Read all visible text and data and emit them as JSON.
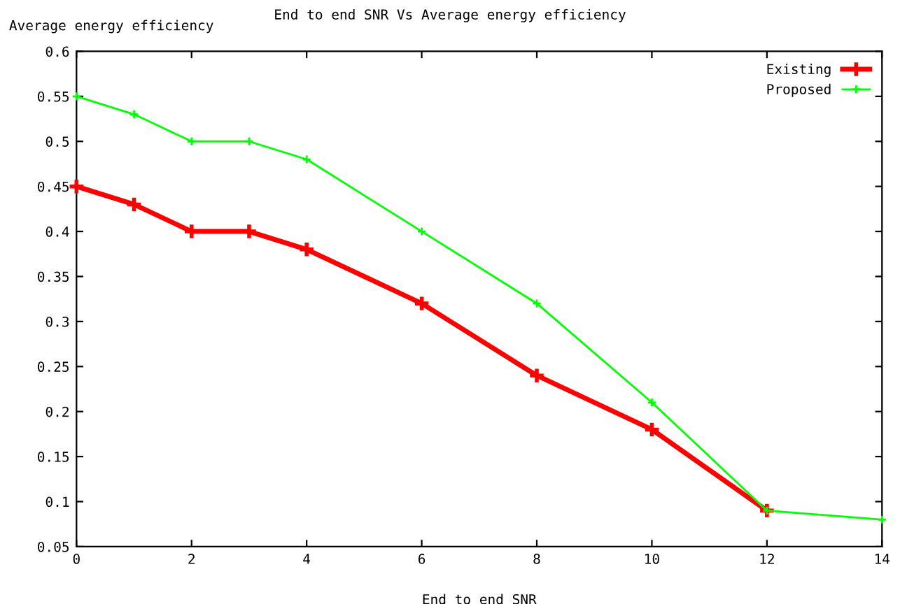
{
  "chart_data": {
    "type": "line",
    "title": "End to end SNR Vs Average energy efficiency",
    "xlabel": "End to end SNR",
    "ylabel": "Average energy efficiency",
    "series": [
      {
        "name": "Existing",
        "color": "#ff0000",
        "x": [
          0,
          1,
          2,
          3,
          4,
          6,
          8,
          10,
          12
        ],
        "values": [
          0.45,
          0.43,
          0.4,
          0.4,
          0.38,
          0.32,
          0.24,
          0.18,
          0.09
        ]
      },
      {
        "name": "Proposed",
        "color": "#00ff00",
        "x": [
          0,
          1,
          2,
          3,
          4,
          6,
          8,
          10,
          12,
          14
        ],
        "values": [
          0.55,
          0.53,
          0.5,
          0.5,
          0.48,
          0.4,
          0.32,
          0.21,
          0.09,
          0.08
        ]
      }
    ],
    "xlim": [
      0,
      14
    ],
    "xticks": [
      0,
      2,
      4,
      6,
      8,
      10,
      12,
      14
    ],
    "ylim": [
      0.05,
      0.6
    ],
    "yticks": [
      0.05,
      0.1,
      0.15,
      0.2,
      0.25,
      0.3,
      0.35,
      0.4,
      0.45,
      0.5,
      0.55,
      0.6
    ],
    "marker": "cross",
    "legend": "top right",
    "grid": false
  }
}
